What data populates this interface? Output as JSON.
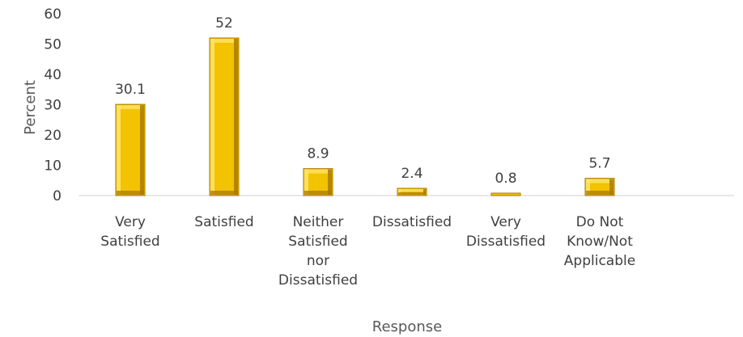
{
  "chart_data": {
    "type": "bar",
    "categories": [
      [
        "Very",
        "Satisfied"
      ],
      [
        "Satisfied"
      ],
      [
        "Neither",
        "Satisfied",
        "nor",
        "Dissatisfied"
      ],
      [
        "Dissatisfied"
      ],
      [
        "Very",
        "Dissatisfied"
      ],
      [
        "Do Not",
        "Know/Not",
        "Applicable"
      ]
    ],
    "values": [
      30.1,
      52,
      8.9,
      2.4,
      0.8,
      5.7
    ],
    "value_labels": [
      "30.1",
      "52",
      "8.9",
      "2.4",
      "0.8",
      "5.7"
    ],
    "xlabel": "Response",
    "ylabel": "Percent",
    "ylim": [
      0,
      60
    ],
    "yticks": [
      "0",
      "10",
      "20",
      "30",
      "40",
      "50",
      "60"
    ],
    "grid": false,
    "colors": {
      "bar_face": "#f3c200",
      "bar_light": "#ffe36b",
      "bar_dark": "#a97a00",
      "axis": "#d9d9d9"
    }
  }
}
